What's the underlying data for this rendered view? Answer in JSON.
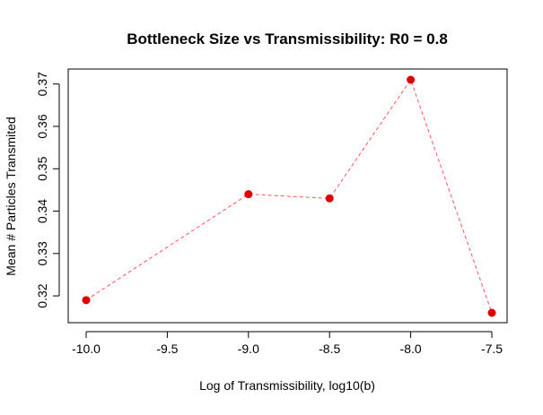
{
  "chart_data": {
    "type": "line",
    "title": "Bottleneck Size vs Transmissibility: R0 = 0.8",
    "xlabel": "Log of Transmissibility, log10(b)",
    "ylabel": "Mean # Particles Transmited",
    "x": [
      -10.0,
      -9.0,
      -8.5,
      -8.0,
      -7.5
    ],
    "series": [
      {
        "values": [
          0.319,
          0.344,
          0.343,
          0.371,
          0.316
        ],
        "color": "#dd0000",
        "line_color": "#ff5555",
        "line_style": "dashed",
        "marker": "filled-circle"
      }
    ],
    "xlim": [
      -10.0,
      -7.5
    ],
    "ylim": [
      0.316,
      0.371
    ],
    "x_ticks": [
      -10.0,
      -9.5,
      -9.0,
      -8.5,
      -8.0,
      -7.5
    ],
    "x_tick_labels": [
      "-10.0",
      "-9.5",
      "-9.0",
      "-8.5",
      "-8.0",
      "-7.5"
    ],
    "y_ticks": [
      0.32,
      0.33,
      0.34,
      0.35,
      0.36,
      0.37
    ],
    "y_tick_labels": [
      "0.32",
      "0.33",
      "0.34",
      "0.35",
      "0.36",
      "0.37"
    ],
    "grid": false,
    "legend": "none"
  }
}
